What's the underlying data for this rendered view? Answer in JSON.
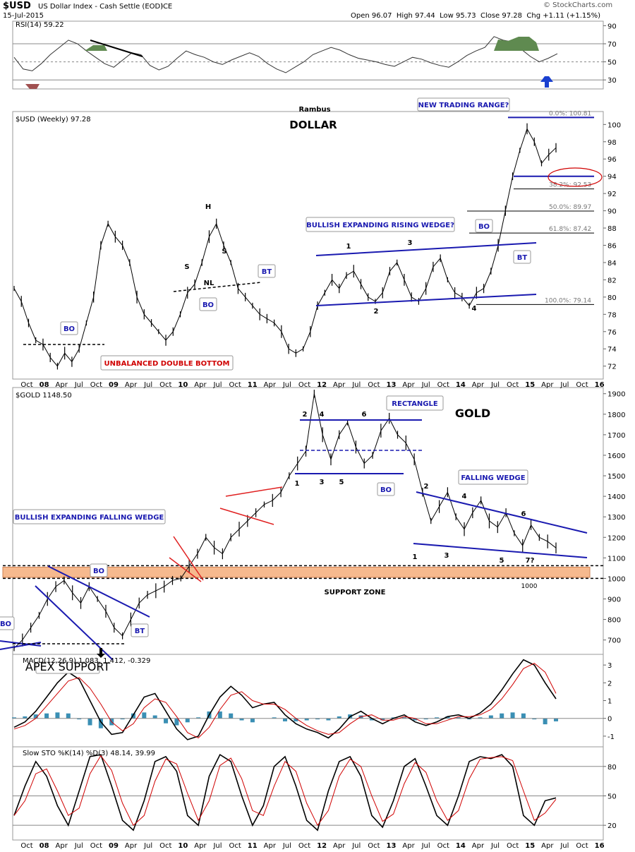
{
  "header": {
    "symbol": "$USD",
    "description": "US Dollar Index - Cash Settle (EOD)",
    "exchange": "ICE",
    "date": "15-Jul-2015",
    "open_label": "Open",
    "open": "96.07",
    "high_label": "High",
    "high": "97.44",
    "low": "95.73",
    "close_label": "Close",
    "close": "97.28",
    "chg_label": "Chg",
    "chg": "+1.11 (+1.15%)",
    "watermark": "© StockCharts.com",
    "author": "Rambus"
  },
  "colors": {
    "price": "#000000",
    "annotation": "#1a1ab0",
    "warning": "#d00000",
    "support_zone": "#f6b98e",
    "rsi_fill": "#5f8a50",
    "macd_hist": "#3a8fb4",
    "signal": "#d00000"
  },
  "x_axis": {
    "labels": [
      "Oct",
      "08",
      "Apr",
      "Jul",
      "Oct",
      "09",
      "Apr",
      "Jul",
      "Oct",
      "10",
      "Apr",
      "Jul",
      "Oct",
      "11",
      "Apr",
      "Jul",
      "Oct",
      "12",
      "Apr",
      "Jul",
      "Oct",
      "13",
      "Apr",
      "Jul",
      "Oct",
      "14",
      "Apr",
      "Jul",
      "Oct",
      "15",
      "Apr",
      "Jul",
      "Oct",
      "16"
    ],
    "year_labels": [
      "08",
      "09",
      "10",
      "11",
      "12",
      "13",
      "14",
      "15",
      "16"
    ]
  },
  "chart_data": [
    {
      "id": "rsi",
      "type": "line",
      "title": "RSI(14) 59.22",
      "ylim": [
        20,
        95
      ],
      "y_ticks": [
        90,
        70,
        50,
        30
      ],
      "reference_lines": [
        70,
        30
      ],
      "values": [
        55,
        42,
        40,
        48,
        58,
        66,
        74,
        70,
        62,
        55,
        48,
        44,
        52,
        60,
        58,
        46,
        41,
        45,
        54,
        62,
        58,
        55,
        50,
        47,
        52,
        56,
        60,
        56,
        48,
        42,
        38,
        44,
        50,
        58,
        62,
        66,
        63,
        58,
        54,
        52,
        50,
        47,
        45,
        50,
        55,
        53,
        49,
        46,
        44,
        50,
        57,
        62,
        66,
        78,
        74,
        72,
        64,
        56,
        50,
        54,
        59
      ]
    },
    {
      "id": "usd",
      "type": "line",
      "title": "$USD (Weekly) 97.28",
      "label": "DOLLAR",
      "ylim": [
        70.5,
        101.5
      ],
      "y_ticks": [
        100,
        98,
        96,
        94,
        92,
        90,
        88,
        86,
        84,
        82,
        80,
        78,
        76,
        74,
        72
      ],
      "values": [
        81,
        79.5,
        77,
        75,
        74.5,
        73,
        72,
        73.5,
        72.5,
        74,
        77,
        80,
        86,
        88.5,
        87,
        86,
        84,
        80,
        78,
        77,
        76,
        75,
        76,
        78,
        80.5,
        81.5,
        84,
        87,
        88.5,
        86,
        84,
        81,
        80,
        79,
        78,
        77.5,
        77,
        76,
        74,
        73.5,
        74,
        76,
        79,
        80.5,
        82,
        81,
        82.5,
        83,
        81.5,
        80,
        79.5,
        80.5,
        83,
        84,
        82,
        80,
        79.5,
        81,
        83.5,
        84.5,
        82,
        80.5,
        80,
        79,
        80.5,
        81,
        83,
        86,
        90,
        94,
        97,
        99.5,
        98,
        95.5,
        96.5,
        97.3
      ],
      "fib_levels": [
        {
          "label": "0.0%: 100.81",
          "value": 100.81
        },
        {
          "label": "38.2%: 92.53",
          "value": 92.53
        },
        {
          "label": "50.0%: 89.97",
          "value": 89.97
        },
        {
          "label": "61.8%: 87.42",
          "value": 87.42
        },
        {
          "label": "100.0%: 79.14",
          "value": 79.14
        }
      ],
      "annotations": {
        "new_trading_range": "NEW TRADING RANGE?",
        "wedge": "BULLISH EXPANDING RISING WEDGE?",
        "double_bottom": "UNBALANCED DOUBLE BOTTOM",
        "bo": "BO",
        "bt": "BT",
        "h": "H",
        "s": "S",
        "nl": "NL",
        "n1": "1",
        "n2": "2",
        "n3": "3",
        "n4": "4"
      }
    },
    {
      "id": "gold",
      "type": "line",
      "title": "$GOLD 1148.50",
      "label": "GOLD",
      "ylim": [
        630,
        1930
      ],
      "y_ticks": [
        1900,
        1800,
        1700,
        1600,
        1500,
        1400,
        1300,
        1200,
        1100,
        1000,
        900,
        800,
        700
      ],
      "values": [
        660,
        700,
        760,
        820,
        900,
        960,
        990,
        930,
        880,
        960,
        900,
        840,
        760,
        720,
        800,
        880,
        920,
        940,
        960,
        990,
        1000,
        1060,
        1120,
        1200,
        1150,
        1120,
        1200,
        1240,
        1280,
        1320,
        1360,
        1380,
        1420,
        1500,
        1560,
        1620,
        1900,
        1700,
        1580,
        1700,
        1760,
        1640,
        1560,
        1600,
        1720,
        1780,
        1700,
        1660,
        1580,
        1420,
        1280,
        1350,
        1420,
        1300,
        1240,
        1320,
        1380,
        1280,
        1250,
        1320,
        1220,
        1160,
        1260,
        1200,
        1180,
        1148.5
      ],
      "support_zone": [
        1005,
        1055
      ],
      "support_zone_label": "SUPPORT ZONE",
      "support_value_label": "1000",
      "annotations": {
        "falling_wedge_exp": "BULLISH EXPANDING FALLING WEDGE",
        "rectangle": "RECTANGLE",
        "falling_wedge": "FALLING WEDGE",
        "apex": "APEX SUPPORT",
        "bo": "BO",
        "bt": "BT",
        "r1": "1",
        "r2": "2",
        "r3": "3",
        "r4": "4",
        "r5": "5",
        "r6": "6",
        "w7": "7?"
      }
    },
    {
      "id": "macd",
      "type": "line",
      "title": "MACD(12,26,9) 1.083, 1.412, -0.329",
      "ylim": [
        -1.6,
        3.6
      ],
      "y_ticks": [
        3,
        2,
        1,
        0,
        -1
      ],
      "macd": [
        -0.5,
        -0.2,
        0.4,
        1.2,
        2.0,
        2.6,
        2.2,
        1.0,
        -0.2,
        -0.9,
        -0.8,
        0.2,
        1.2,
        1.4,
        0.4,
        -0.6,
        -1.2,
        -1.0,
        0.2,
        1.2,
        1.8,
        1.3,
        0.6,
        0.8,
        0.9,
        0.2,
        -0.3,
        -0.6,
        -0.8,
        -1.1,
        -0.6,
        0.1,
        0.4,
        0.0,
        -0.3,
        0.0,
        0.2,
        -0.2,
        -0.4,
        -0.2,
        0.1,
        0.2,
        0.0,
        0.3,
        0.8,
        1.6,
        2.5,
        3.3,
        3.0,
        2.0,
        1.1
      ],
      "signal": [
        -0.6,
        -0.4,
        0.0,
        0.7,
        1.4,
        2.1,
        2.3,
        1.7,
        0.8,
        -0.2,
        -0.7,
        -0.3,
        0.6,
        1.1,
        0.9,
        0.1,
        -0.8,
        -1.1,
        -0.5,
        0.5,
        1.3,
        1.5,
        1.0,
        0.8,
        0.8,
        0.5,
        0.0,
        -0.4,
        -0.7,
        -0.9,
        -0.8,
        -0.3,
        0.1,
        0.2,
        -0.1,
        -0.1,
        0.1,
        0.0,
        -0.3,
        -0.3,
        -0.1,
        0.1,
        0.1,
        0.2,
        0.5,
        1.1,
        1.9,
        2.8,
        3.1,
        2.6,
        1.4
      ]
    },
    {
      "id": "sto",
      "type": "line",
      "title": "Slow STO %K(14) %D(3) 48.14, 39.99",
      "ylim": [
        5,
        100
      ],
      "y_ticks": [
        80,
        50,
        20
      ],
      "reference_lines": [
        80,
        50,
        20
      ],
      "values": [
        30,
        60,
        85,
        70,
        40,
        20,
        55,
        90,
        92,
        60,
        25,
        15,
        45,
        85,
        90,
        75,
        30,
        20,
        70,
        92,
        85,
        50,
        20,
        40,
        80,
        90,
        60,
        25,
        15,
        55,
        85,
        90,
        70,
        30,
        18,
        45,
        80,
        88,
        60,
        30,
        20,
        50,
        85,
        90,
        88,
        92,
        80,
        30,
        20,
        45,
        48
      ]
    }
  ]
}
